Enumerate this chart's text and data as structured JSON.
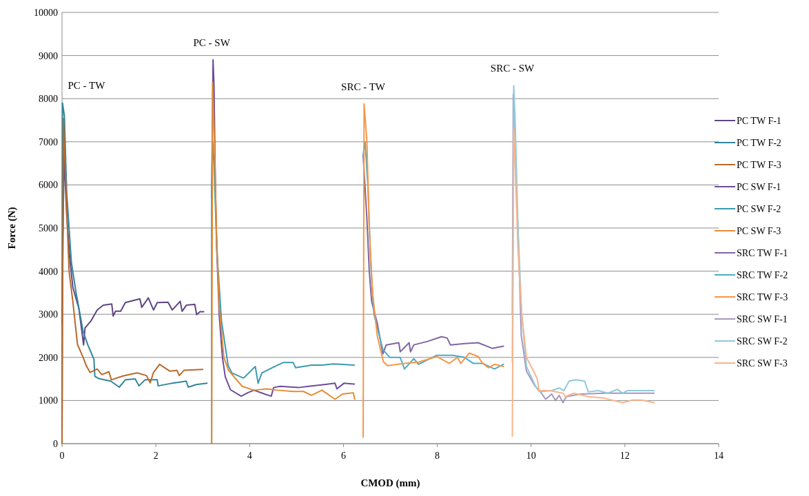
{
  "chart_data": {
    "type": "line",
    "xlabel": "CMOD (mm)",
    "ylabel": "Force (N)",
    "xlim": [
      0,
      14
    ],
    "ylim": [
      0,
      10000
    ],
    "xticks": [
      0,
      2,
      4,
      6,
      8,
      10,
      12,
      14
    ],
    "yticks": [
      0,
      1000,
      2000,
      3000,
      4000,
      5000,
      6000,
      7000,
      8000,
      9000,
      10000
    ],
    "grid": "y",
    "legend": "right",
    "marker": "none",
    "line_style": "solid",
    "annotations": [
      "PC - TW",
      "PC - SW",
      "SRC - TW",
      "SRC - SW"
    ],
    "series": [
      {
        "name": "PC TW F-1",
        "color": "#5f4583",
        "x": [
          0,
          0.04,
          0.1,
          0.16,
          0.23,
          0.36,
          0.46,
          0.49,
          0.62,
          0.75,
          0.88,
          1.06,
          1.09,
          1.14,
          1.25,
          1.35,
          1.66,
          1.7,
          1.84,
          1.95,
          2.03,
          2.26,
          2.35,
          2.52,
          2.56,
          2.65,
          2.83,
          2.87,
          2.94,
          3.02
        ],
        "values": [
          2800,
          6700,
          5300,
          4360,
          3630,
          3130,
          2290,
          2680,
          2850,
          3100,
          3210,
          3240,
          2960,
          3070,
          3070,
          3270,
          3360,
          3160,
          3380,
          3100,
          3270,
          3280,
          3100,
          3300,
          3070,
          3210,
          3230,
          2990,
          3060,
          3060
        ]
      },
      {
        "name": "PC TW F-2",
        "color": "#31859c",
        "x": [
          0,
          0.01,
          0.05,
          0.1,
          0.2,
          0.3,
          0.45,
          0.55,
          0.68,
          0.7,
          0.78,
          1.04,
          1.22,
          1.35,
          1.56,
          1.64,
          1.77,
          2.03,
          2.05,
          2.34,
          2.65,
          2.69,
          2.86,
          3.09
        ],
        "values": [
          0,
          7900,
          7600,
          5800,
          4200,
          3500,
          2600,
          2290,
          1960,
          1560,
          1510,
          1450,
          1310,
          1480,
          1500,
          1340,
          1480,
          1480,
          1340,
          1400,
          1450,
          1310,
          1370,
          1400
        ]
      },
      {
        "name": "PC TW F-3",
        "color": "#b9692c",
        "x": [
          0,
          0.03,
          0.08,
          0.15,
          0.23,
          0.33,
          0.45,
          0.52,
          0.6,
          0.75,
          0.85,
          1,
          1.05,
          1.3,
          1.6,
          1.8,
          1.88,
          1.95,
          2.08,
          2.3,
          2.45,
          2.5,
          2.6,
          3
        ],
        "values": [
          0,
          7540,
          6000,
          4000,
          3300,
          2300,
          2000,
          1800,
          1650,
          1730,
          1600,
          1670,
          1480,
          1570,
          1640,
          1580,
          1410,
          1650,
          1840,
          1680,
          1700,
          1580,
          1700,
          1720
        ]
      },
      {
        "name": "PC SW F-1",
        "color": "#6b4c9a",
        "x": [
          3.19,
          3.22,
          3.24,
          3.27,
          3.3,
          3.35,
          3.42,
          3.48,
          3.59,
          3.82,
          3.96,
          4.09,
          4.32,
          4.46,
          4.51,
          4.65,
          5.04,
          5.26,
          5.59,
          5.82,
          5.86,
          6.01,
          6.23
        ],
        "values": [
          5700,
          8900,
          8300,
          6000,
          4500,
          3000,
          2000,
          1550,
          1250,
          1100,
          1180,
          1240,
          1150,
          1100,
          1300,
          1330,
          1300,
          1330,
          1370,
          1400,
          1270,
          1400,
          1380
        ]
      },
      {
        "name": "PC SW F-2",
        "color": "#3a9bb0",
        "x": [
          3.19,
          3.19,
          3.21,
          3.24,
          3.3,
          3.4,
          3.54,
          3.62,
          3.87,
          4.12,
          4.18,
          4.26,
          4.48,
          4.71,
          4.93,
          4.98,
          5.32,
          5.54,
          5.79,
          6.23
        ],
        "values": [
          0,
          5800,
          7000,
          6500,
          4500,
          2840,
          1820,
          1640,
          1520,
          1790,
          1400,
          1640,
          1760,
          1880,
          1880,
          1760,
          1820,
          1820,
          1850,
          1820
        ]
      },
      {
        "name": "PC SW F-3",
        "color": "#e38b35",
        "x": [
          3.19,
          3.21,
          3.25,
          3.29,
          3.35,
          3.45,
          3.55,
          3.84,
          4.09,
          4.37,
          4.59,
          4.93,
          5.15,
          5.32,
          5.54,
          5.82,
          5.98,
          6.21,
          6.24
        ],
        "values": [
          0,
          8370,
          7000,
          5000,
          3200,
          2000,
          1700,
          1330,
          1240,
          1270,
          1240,
          1210,
          1210,
          1120,
          1240,
          1030,
          1150,
          1180,
          1030
        ]
      },
      {
        "name": "SRC TW F-1",
        "color": "#8064a2",
        "x": [
          6.42,
          6.5,
          6.55,
          6.6,
          6.72,
          6.84,
          6.91,
          7.18,
          7.21,
          7.4,
          7.43,
          7.5,
          7.79,
          8.09,
          8.21,
          8.28,
          8.58,
          8.87,
          9.17,
          9.41
        ],
        "values": [
          6690,
          5200,
          4000,
          3300,
          2800,
          2080,
          2290,
          2340,
          2130,
          2340,
          2130,
          2290,
          2370,
          2480,
          2450,
          2290,
          2320,
          2340,
          2210,
          2260
        ]
      },
      {
        "name": "SRC TW F-2",
        "color": "#4bacc6",
        "x": [
          6.42,
          6.46,
          6.52,
          6.58,
          6.65,
          6.84,
          6.99,
          7.21,
          7.3,
          7.5,
          7.6,
          7.99,
          8.33,
          8.58,
          8.77,
          8.97,
          9.22,
          9.41
        ],
        "values": [
          6700,
          7000,
          6000,
          4200,
          3000,
          2180,
          2000,
          2000,
          1730,
          1970,
          1840,
          2050,
          2050,
          2000,
          1860,
          1860,
          1730,
          1840
        ]
      },
      {
        "name": "SRC TW F-3",
        "color": "#f79646",
        "x": [
          6.42,
          6.44,
          6.5,
          6.55,
          6.62,
          6.72,
          6.85,
          6.94,
          7.3,
          7.6,
          7.99,
          8.26,
          8.43,
          8.5,
          8.68,
          8.87,
          8.97,
          9.09,
          9.22,
          9.41
        ],
        "values": [
          150,
          7880,
          7000,
          5000,
          3500,
          2500,
          1900,
          1810,
          1860,
          1890,
          2020,
          1860,
          2000,
          1860,
          2100,
          2020,
          1860,
          1760,
          1840,
          1790
        ]
      },
      {
        "name": "SRC SW F-1",
        "color": "#a597c0",
        "x": [
          9.6,
          9.62,
          9.64,
          9.72,
          9.79,
          9.9,
          10.08,
          10.18,
          10.31,
          10.44,
          10.52,
          10.6,
          10.68,
          10.75,
          11.06,
          11.58,
          12.62
        ],
        "values": [
          3000,
          8100,
          7000,
          5000,
          2510,
          1680,
          1340,
          1230,
          1030,
          1150,
          1000,
          1120,
          950,
          1090,
          1150,
          1170,
          1170
        ]
      },
      {
        "name": "SRC SW F-2",
        "color": "#8fc9da",
        "x": [
          9.6,
          9.63,
          9.66,
          9.72,
          9.8,
          9.9,
          10.1,
          10.18,
          10.44,
          10.6,
          10.7,
          10.81,
          10.96,
          11.14,
          11.22,
          11.43,
          11.64,
          11.84,
          11.95,
          12.05,
          12.62
        ],
        "values": [
          1900,
          8300,
          7500,
          5000,
          3000,
          1790,
          1320,
          1200,
          1230,
          1290,
          1230,
          1450,
          1480,
          1450,
          1200,
          1230,
          1170,
          1260,
          1170,
          1230,
          1230
        ]
      },
      {
        "name": "SRC SW F-3",
        "color": "#f9b48a",
        "x": [
          9.6,
          9.63,
          9.66,
          9.72,
          9.8,
          9.9,
          10.03,
          10.13,
          10.17,
          10.39,
          10.68,
          10.73,
          10.91,
          11.22,
          11.53,
          11.95,
          12.16,
          12.36,
          12.62
        ],
        "values": [
          170,
          7320,
          6500,
          4500,
          3000,
          2000,
          1730,
          1510,
          1230,
          1230,
          1170,
          1090,
          1170,
          1090,
          1060,
          950,
          1010,
          1010,
          950
        ]
      }
    ]
  }
}
